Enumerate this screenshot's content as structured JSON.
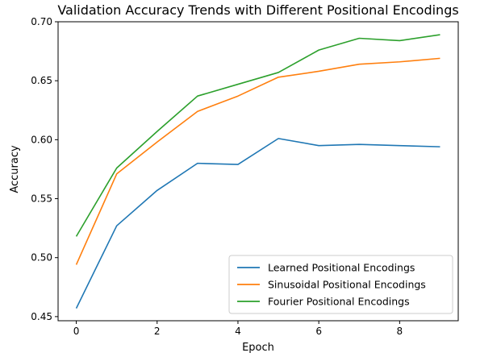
{
  "chart_data": {
    "type": "line",
    "title": "Validation Accuracy Trends with Different Positional Encodings",
    "xlabel": "Epoch",
    "ylabel": "Accuracy",
    "xlim": [
      -0.45,
      9.45
    ],
    "ylim": [
      0.4465,
      0.7
    ],
    "xticks": [
      0,
      2,
      4,
      6,
      8
    ],
    "xtick_labels": [
      "0",
      "2",
      "4",
      "6",
      "8"
    ],
    "yticks": [
      0.45,
      0.5,
      0.55,
      0.6,
      0.65,
      0.7
    ],
    "ytick_labels": [
      "0.45",
      "0.50",
      "0.55",
      "0.60",
      "0.65",
      "0.70"
    ],
    "grid": false,
    "legend_position": "lower-right",
    "x": [
      0,
      1,
      2,
      3,
      4,
      5,
      6,
      7,
      8,
      9
    ],
    "series": [
      {
        "name": "Learned Positional Encodings",
        "color": "#1f77b4",
        "values": [
          0.457,
          0.527,
          0.557,
          0.58,
          0.579,
          0.601,
          0.595,
          0.596,
          0.595,
          0.594
        ]
      },
      {
        "name": "Sinusoidal Positional Encodings",
        "color": "#ff7f0e",
        "values": [
          0.494,
          0.571,
          0.598,
          0.624,
          0.637,
          0.653,
          0.658,
          0.664,
          0.666,
          0.669
        ]
      },
      {
        "name": "Fourier Positional Encodings",
        "color": "#2ca02c",
        "values": [
          0.518,
          0.576,
          0.607,
          0.637,
          0.647,
          0.657,
          0.676,
          0.686,
          0.684,
          0.689
        ]
      }
    ]
  }
}
